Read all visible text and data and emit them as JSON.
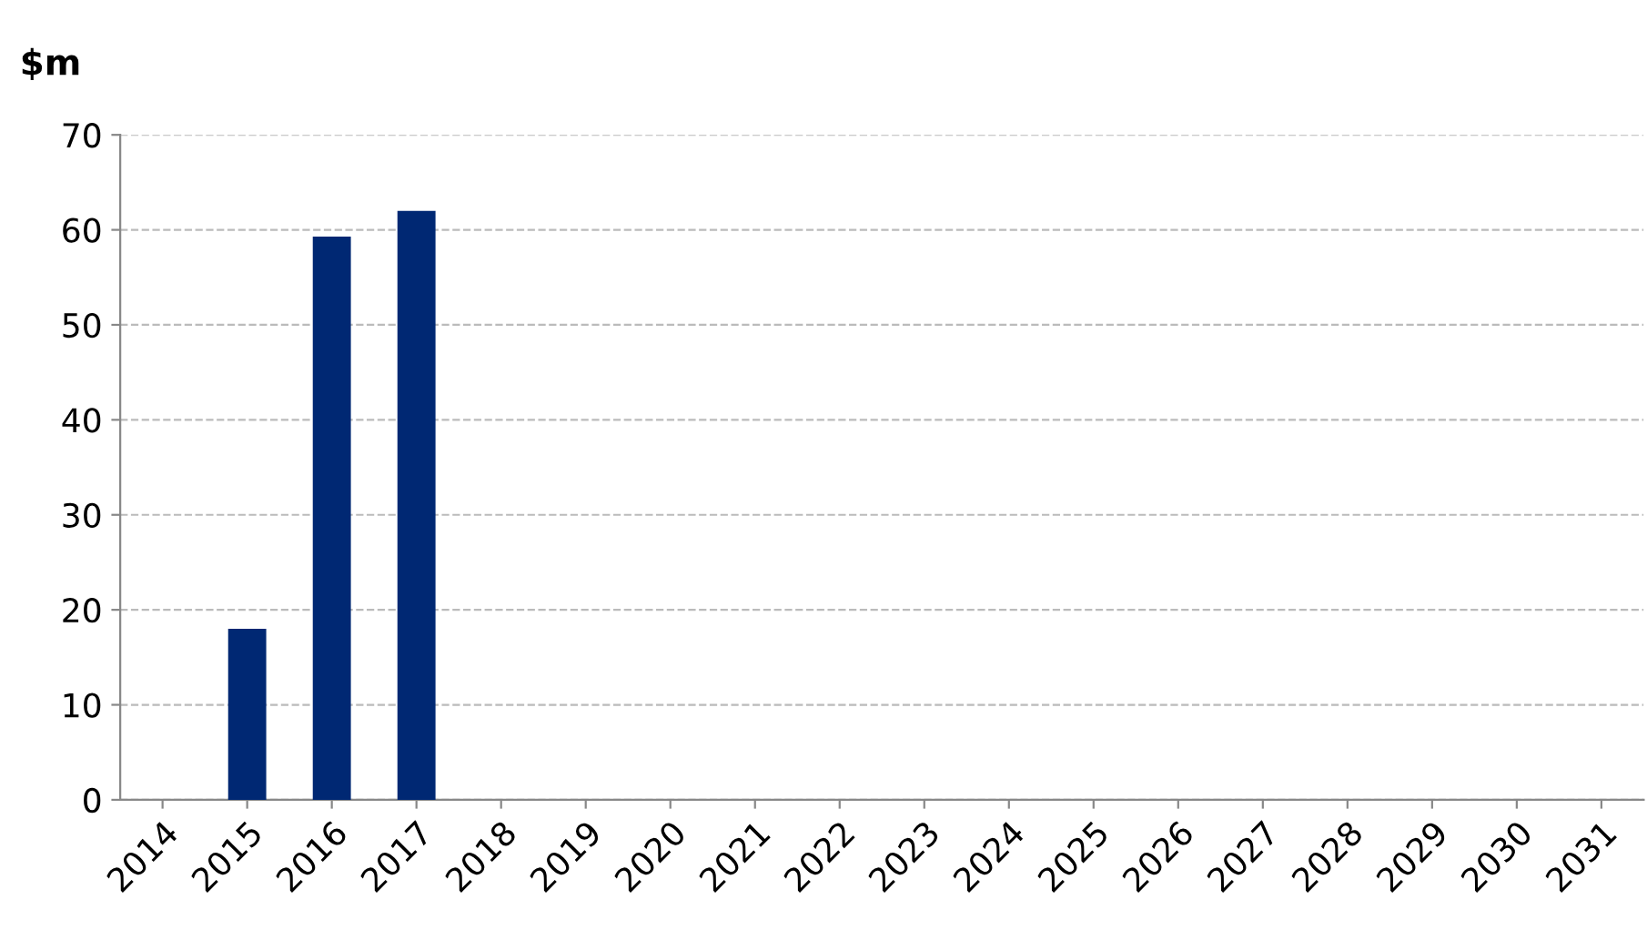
{
  "chart_data": {
    "type": "bar",
    "ylabel": "$m",
    "categories": [
      "2014",
      "2015",
      "2016",
      "2017",
      "2018",
      "2019",
      "2020",
      "2021",
      "2022",
      "2023",
      "2024",
      "2025",
      "2026",
      "2027",
      "2028",
      "2029",
      "2030",
      "2031"
    ],
    "values": [
      null,
      18,
      59.3,
      62,
      null,
      null,
      null,
      null,
      null,
      null,
      null,
      null,
      null,
      null,
      null,
      null,
      null,
      null
    ],
    "color": "#002873",
    "ylim": [
      0,
      70
    ],
    "yticks": [
      0,
      10,
      20,
      30,
      40,
      50,
      60,
      70
    ],
    "grid": "y"
  }
}
